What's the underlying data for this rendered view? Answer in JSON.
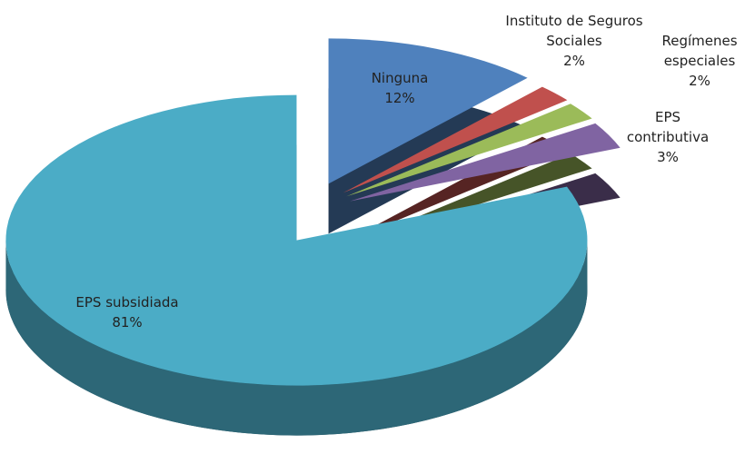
{
  "chart_data": {
    "type": "pie",
    "categories": [
      "Ninguna",
      "Instituto de Seguros Sociales",
      "Regímenes especiales",
      "EPS contributiva",
      "EPS subsidiada"
    ],
    "values": [
      12,
      2,
      2,
      3,
      81
    ],
    "value_labels": [
      "12%",
      "2%",
      "2%",
      "3%",
      "81%"
    ],
    "colors": [
      "#4f81bd",
      "#c0504d",
      "#9bbb59",
      "#8064a2",
      "#4bacc6"
    ]
  }
}
